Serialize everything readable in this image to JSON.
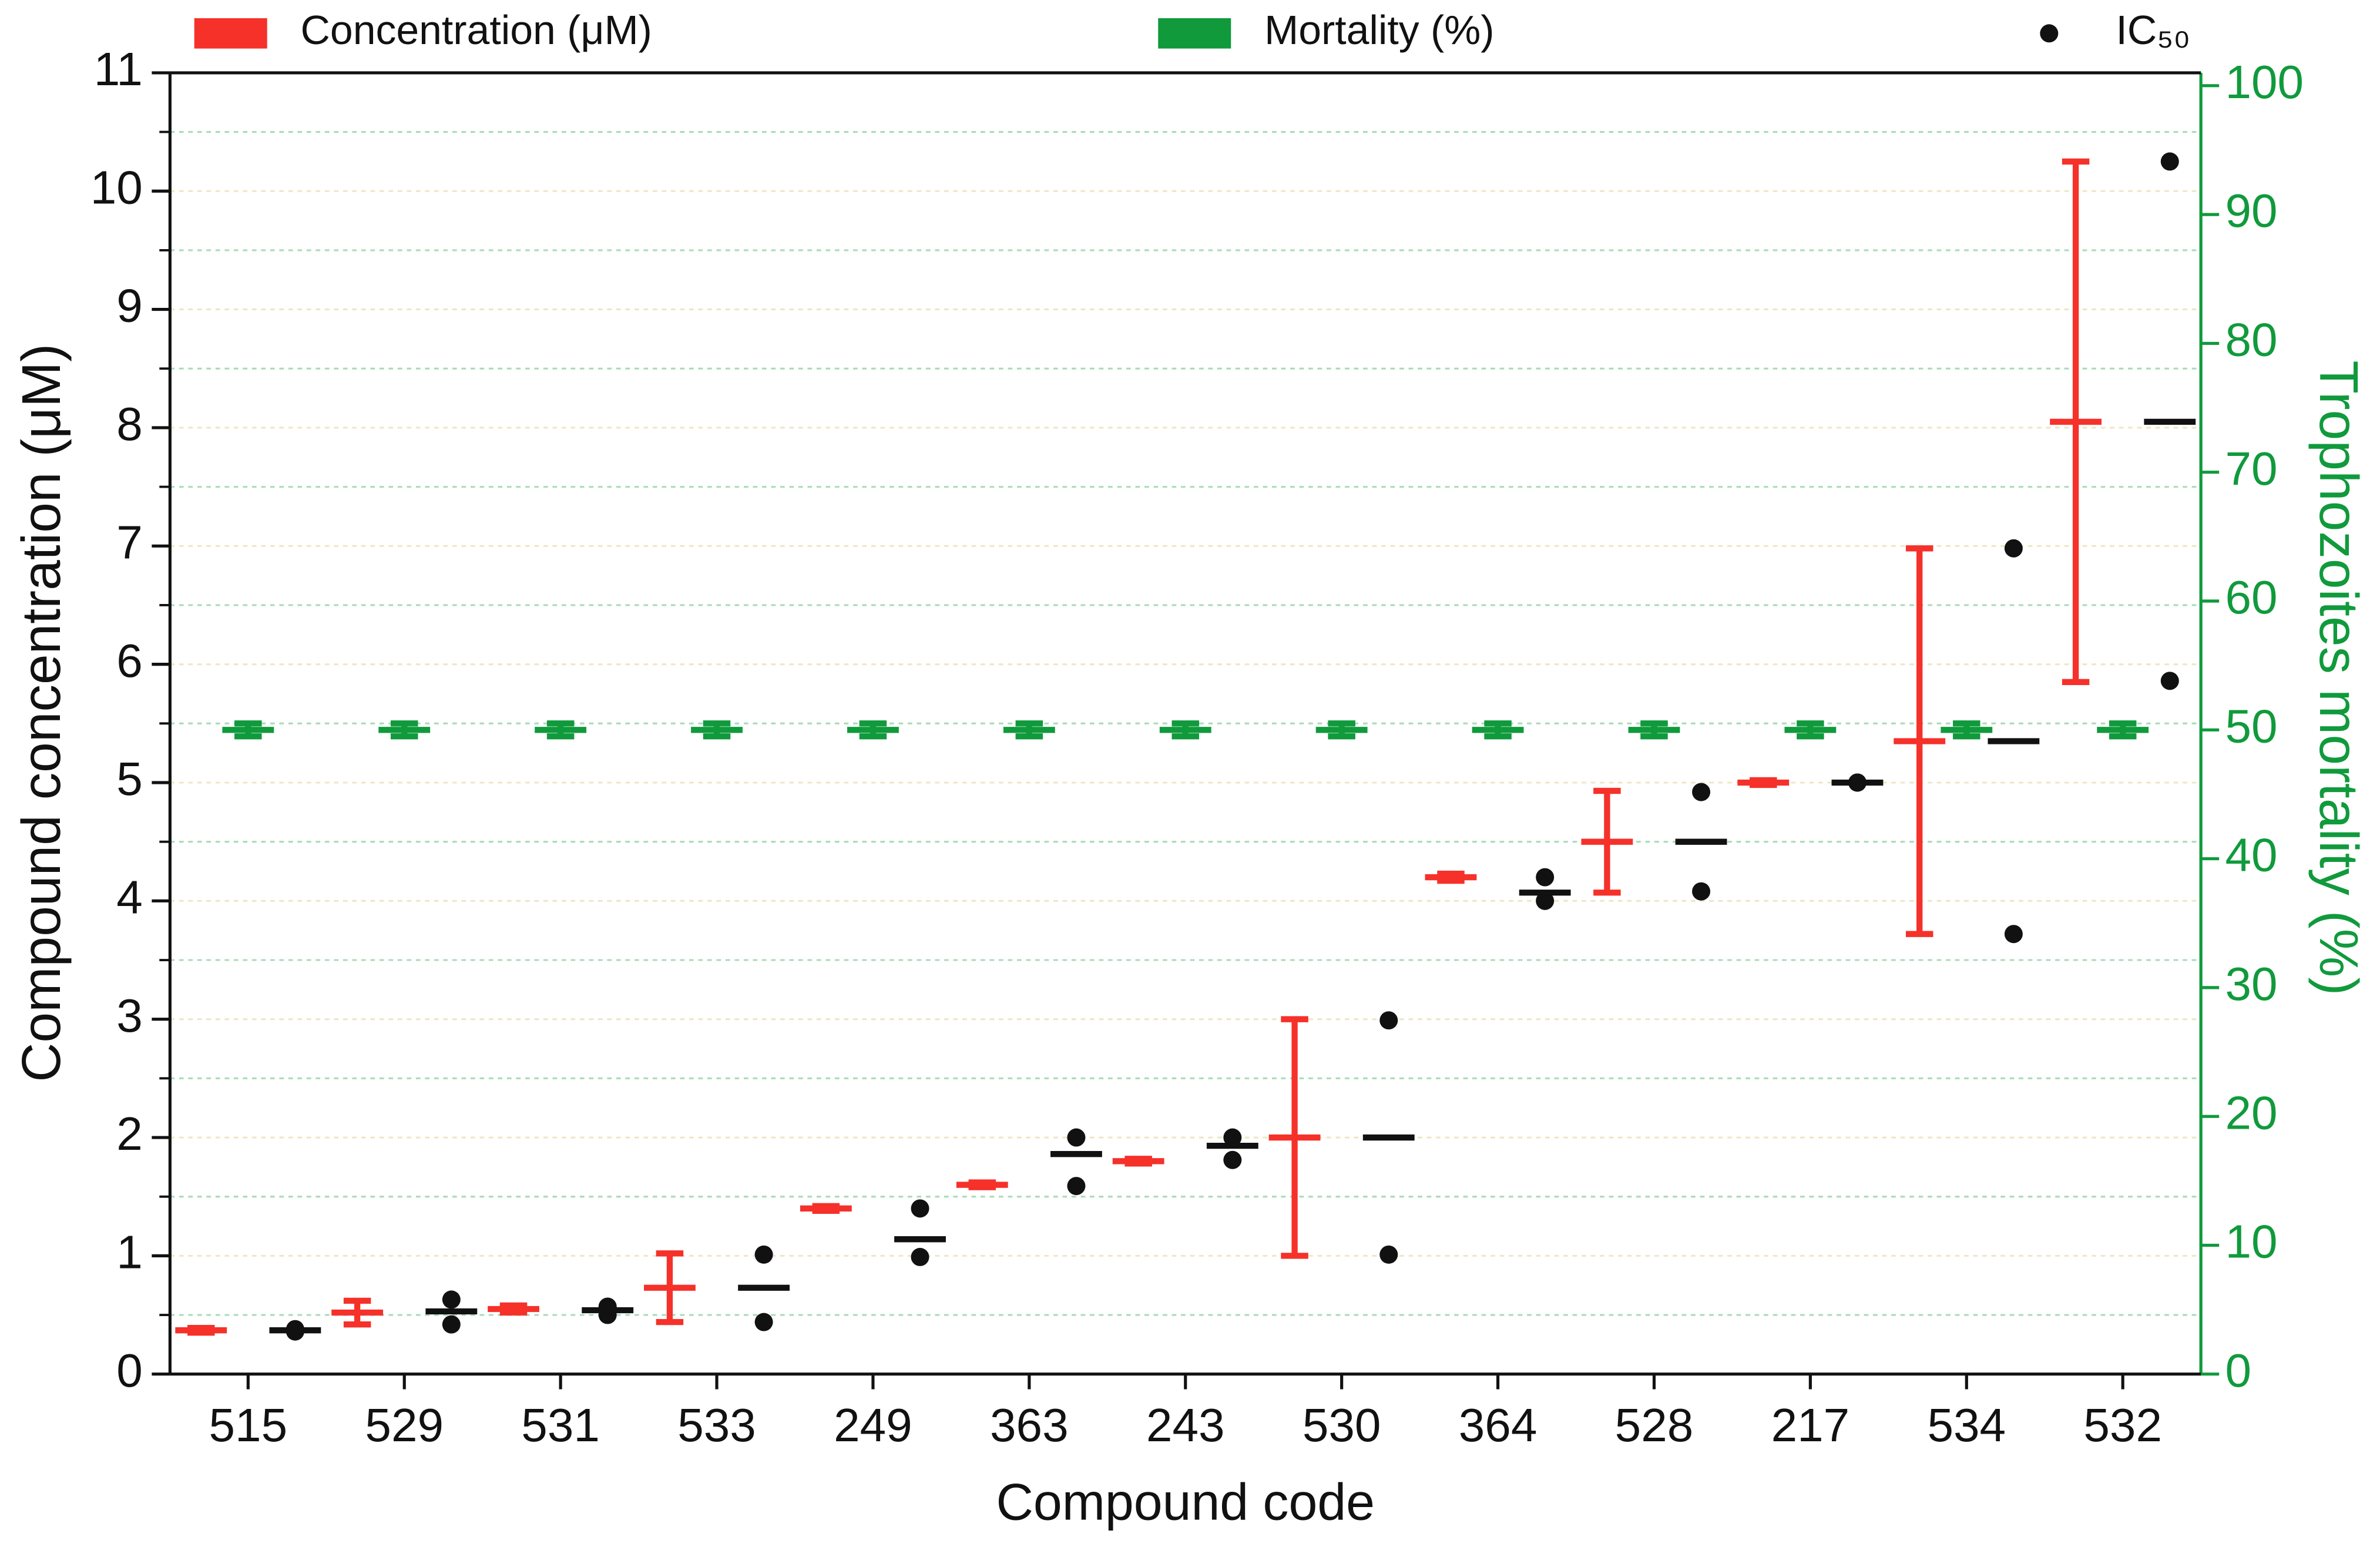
{
  "chart_data": {
    "type": "errorbar-dot",
    "xlabel": "Compound code",
    "ylabel": "Compound concentration (μM)",
    "y2label": "Trophozoites mortality (%)",
    "categories": [
      "515",
      "529",
      "531",
      "533",
      "249",
      "363",
      "243",
      "530",
      "364",
      "528",
      "217",
      "534",
      "532"
    ],
    "ylim": [
      0,
      11
    ],
    "yticks": [
      0,
      1,
      2,
      3,
      4,
      5,
      6,
      7,
      8,
      9,
      10,
      11
    ],
    "yminorticks": [
      0.5,
      1.5,
      2.5,
      3.5,
      4.5,
      5.5,
      6.5,
      7.5,
      8.5,
      9.5,
      10.5
    ],
    "y2lim": [
      0,
      101
    ],
    "y2ticks": [
      0,
      10,
      20,
      30,
      40,
      50,
      60,
      70,
      80,
      90,
      100
    ],
    "y2color": "#109a3c",
    "grid": true,
    "legend": "top",
    "series": [
      {
        "name": "Concentration (μM)",
        "color": "#f5312a",
        "kind": "errorbar",
        "values": [
          0.37,
          0.52,
          0.55,
          0.73,
          1.4,
          1.6,
          1.8,
          2.0,
          4.2,
          4.5,
          5.0,
          5.35,
          8.05
        ],
        "errors": [
          0.02,
          0.1,
          0.03,
          0.29,
          0.02,
          0.02,
          0.02,
          1.0,
          0.03,
          0.43,
          0.02,
          1.63,
          2.2
        ]
      },
      {
        "name": "Mortality (%)",
        "color": "#109a3c",
        "kind": "errorbar",
        "axis": "y2",
        "values": [
          50,
          50,
          50,
          50,
          50,
          50,
          50,
          50,
          50,
          50,
          50,
          50,
          50
        ],
        "errors": [
          0.5,
          0.5,
          0.5,
          0.5,
          0.5,
          0.5,
          0.5,
          0.5,
          0.5,
          0.5,
          0.5,
          0.5,
          0.5
        ]
      },
      {
        "name": "IC₅₀",
        "color": "#111111",
        "kind": "dots",
        "values": [
          0.37,
          0.53,
          0.54,
          0.73,
          1.14,
          1.86,
          1.93,
          2.0,
          4.07,
          4.5,
          5.0,
          5.35,
          8.05
        ],
        "replicates": [
          [
            0.36,
            0.38
          ],
          [
            0.42,
            0.63
          ],
          [
            0.5,
            0.57
          ],
          [
            0.44,
            1.01
          ],
          [
            0.99,
            1.4
          ],
          [
            1.59,
            2.0
          ],
          [
            1.81,
            2.0
          ],
          [
            1.01,
            2.99
          ],
          [
            4.0,
            4.2
          ],
          [
            4.08,
            4.92
          ],
          [
            5.0,
            5.0
          ],
          [
            3.72,
            6.98
          ],
          [
            5.86,
            10.25
          ]
        ]
      }
    ]
  }
}
